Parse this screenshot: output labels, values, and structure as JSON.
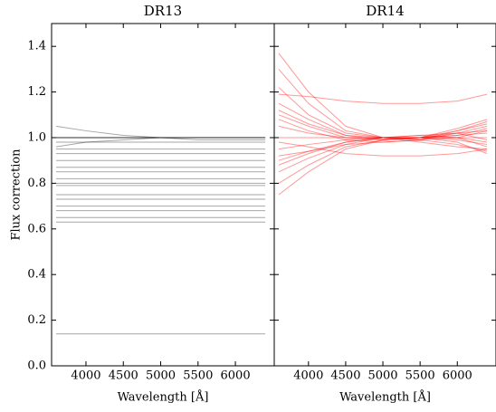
{
  "chart_data": [
    {
      "type": "line",
      "title": "DR13",
      "xlabel": "Wavelength [Å]",
      "ylabel": "Flux correction",
      "x": [
        3600,
        4000,
        4500,
        5000,
        5500,
        6000,
        6400
      ],
      "xlim": [
        3540,
        6520
      ],
      "ylim": [
        0,
        1.5
      ],
      "xticks": [
        4000,
        4500,
        5000,
        5500,
        6000
      ],
      "yticks": [
        {
          "value": 0,
          "label": "0.0"
        },
        0.2,
        0.4,
        0.6,
        0.8,
        {
          "value": 1,
          "label": "1.0"
        },
        1.2,
        1.4
      ],
      "alpha": 0.35,
      "series": [
        {
          "color": "#000000",
          "values": [
            1.0,
            1.0,
            1.0,
            1.0,
            1.0,
            1.0,
            1.0
          ]
        },
        {
          "color": "#000000",
          "values": [
            1.0,
            1.0,
            1.0,
            1.0,
            1.0,
            1.0,
            1.0
          ]
        },
        {
          "color": "#000000",
          "values": [
            1.0,
            1.0,
            1.0,
            1.0,
            1.0,
            1.0,
            1.0
          ]
        },
        {
          "color": "#000000",
          "values": [
            1.0,
            1.0,
            1.0,
            1.0,
            1.0,
            1.0,
            1.0
          ]
        },
        {
          "color": "#000000",
          "values": [
            1.05,
            1.03,
            1.01,
            1.0,
            0.99,
            0.99,
            0.99
          ]
        },
        {
          "color": "#000000",
          "values": [
            0.96,
            0.98,
            0.99,
            1.0,
            1.0,
            1.0,
            1.0
          ]
        },
        {
          "color": "#000000",
          "values": [
            0.98,
            0.98,
            0.98,
            0.98,
            0.98,
            0.98,
            0.98
          ]
        },
        {
          "color": "#000000",
          "values": [
            0.95,
            0.95,
            0.95,
            0.95,
            0.95,
            0.95,
            0.95
          ]
        },
        {
          "color": "#000000",
          "values": [
            0.93,
            0.93,
            0.93,
            0.93,
            0.93,
            0.93,
            0.93
          ]
        },
        {
          "color": "#000000",
          "values": [
            0.9,
            0.9,
            0.9,
            0.9,
            0.9,
            0.9,
            0.9
          ]
        },
        {
          "color": "#000000",
          "values": [
            0.87,
            0.87,
            0.87,
            0.87,
            0.87,
            0.87,
            0.87
          ]
        },
        {
          "color": "#000000",
          "values": [
            0.85,
            0.85,
            0.85,
            0.85,
            0.85,
            0.85,
            0.85
          ]
        },
        {
          "color": "#000000",
          "values": [
            0.82,
            0.82,
            0.82,
            0.82,
            0.82,
            0.82,
            0.82
          ]
        },
        {
          "color": "#000000",
          "values": [
            0.8,
            0.8,
            0.8,
            0.8,
            0.8,
            0.8,
            0.8
          ]
        },
        {
          "color": "#000000",
          "values": [
            0.79,
            0.79,
            0.79,
            0.79,
            0.79,
            0.79,
            0.79
          ]
        },
        {
          "color": "#000000",
          "values": [
            0.75,
            0.75,
            0.75,
            0.75,
            0.75,
            0.75,
            0.75
          ]
        },
        {
          "color": "#000000",
          "values": [
            0.73,
            0.73,
            0.73,
            0.73,
            0.73,
            0.73,
            0.73
          ]
        },
        {
          "color": "#000000",
          "values": [
            0.7,
            0.7,
            0.7,
            0.7,
            0.7,
            0.7,
            0.7
          ]
        },
        {
          "color": "#000000",
          "values": [
            0.68,
            0.68,
            0.68,
            0.68,
            0.68,
            0.68,
            0.68
          ]
        },
        {
          "color": "#000000",
          "values": [
            0.65,
            0.65,
            0.65,
            0.65,
            0.65,
            0.65,
            0.65
          ]
        },
        {
          "color": "#000000",
          "values": [
            0.63,
            0.63,
            0.63,
            0.63,
            0.63,
            0.63,
            0.63
          ]
        },
        {
          "color": "#000000",
          "values": [
            0.14,
            0.14,
            0.14,
            0.14,
            0.14,
            0.14,
            0.14
          ]
        }
      ]
    },
    {
      "type": "line",
      "title": "DR14",
      "xlabel": "Wavelength [Å]",
      "x": [
        3600,
        4000,
        4500,
        5000,
        5500,
        6000,
        6400
      ],
      "xlim": [
        3540,
        6520
      ],
      "ylim": [
        0,
        1.5
      ],
      "xticks": [
        4000,
        4500,
        5000,
        5500,
        6000
      ],
      "alpha": 0.4,
      "series": [
        {
          "color": "#ff0000",
          "values": [
            1.37,
            1.2,
            1.05,
            1.0,
            0.99,
            1.02,
            1.05
          ]
        },
        {
          "color": "#ff0000",
          "values": [
            1.3,
            1.15,
            1.03,
            1.0,
            0.98,
            0.96,
            0.95
          ]
        },
        {
          "color": "#ff0000",
          "values": [
            1.22,
            1.1,
            1.02,
            1.0,
            1.0,
            1.03,
            1.07
          ]
        },
        {
          "color": "#ff0000",
          "values": [
            1.19,
            1.18,
            1.16,
            1.15,
            1.15,
            1.16,
            1.19
          ]
        },
        {
          "color": "#ff0000",
          "values": [
            1.15,
            1.08,
            1.01,
            0.99,
            1.0,
            1.04,
            1.08
          ]
        },
        {
          "color": "#ff0000",
          "values": [
            1.1,
            1.05,
            1.0,
            0.99,
            1.0,
            1.02,
            1.03
          ]
        },
        {
          "color": "#ff0000",
          "values": [
            1.05,
            1.02,
            1.0,
            1.0,
            1.0,
            0.99,
            0.97
          ]
        },
        {
          "color": "#ff0000",
          "values": [
            1.0,
            1.0,
            1.0,
            1.0,
            1.0,
            1.0,
            1.0
          ]
        },
        {
          "color": "#ff0000",
          "values": [
            0.95,
            0.97,
            0.99,
            1.0,
            1.0,
            1.01,
            1.04
          ]
        },
        {
          "color": "#ff0000",
          "values": [
            0.9,
            0.94,
            0.98,
            1.0,
            1.01,
            1.0,
            0.96
          ]
        },
        {
          "color": "#ff0000",
          "values": [
            0.85,
            0.91,
            0.97,
            1.0,
            1.0,
            0.98,
            0.93
          ]
        },
        {
          "color": "#ff0000",
          "values": [
            0.8,
            0.88,
            0.96,
            0.99,
            1.0,
            1.01,
            1.02
          ]
        },
        {
          "color": "#ff0000",
          "values": [
            0.75,
            0.85,
            0.95,
            0.99,
            1.0,
            1.0,
            0.98
          ]
        },
        {
          "color": "#ff0000",
          "values": [
            0.92,
            0.94,
            0.97,
            0.98,
            0.99,
            1.0,
            1.03
          ]
        },
        {
          "color": "#ff0000",
          "values": [
            0.98,
            0.96,
            0.93,
            0.92,
            0.92,
            0.93,
            0.95
          ]
        },
        {
          "color": "#ff0000",
          "values": [
            1.08,
            1.03,
            0.99,
            0.98,
            0.99,
            1.03,
            1.06
          ]
        },
        {
          "color": "#ff0000",
          "values": [
            0.88,
            0.93,
            0.98,
            1.0,
            1.01,
            1.02,
            0.99
          ]
        },
        {
          "color": "#ff0000",
          "values": [
            1.12,
            1.06,
            1.01,
            1.0,
            0.99,
            0.97,
            0.94
          ]
        }
      ]
    }
  ]
}
